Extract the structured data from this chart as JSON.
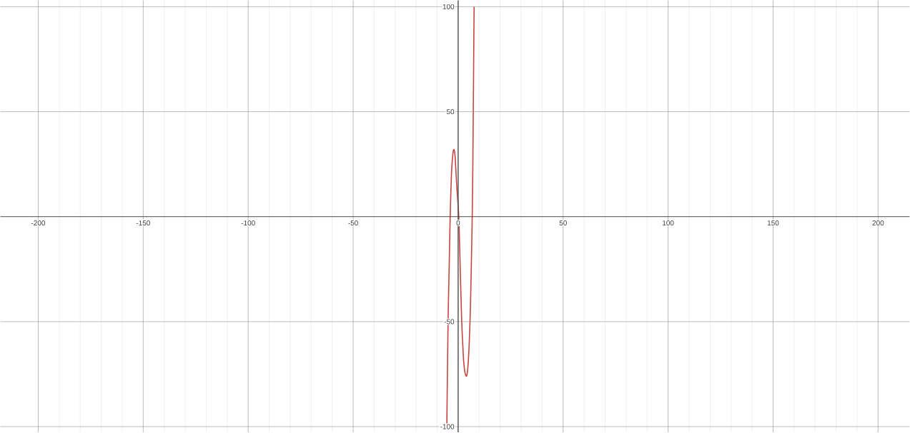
{
  "chart_data": {
    "type": "line",
    "x": [
      -5.4,
      -4.8,
      -4.3,
      -3.8,
      -3.2,
      -2.5,
      -1.95,
      -1.4,
      -0.7,
      0.3,
      1.0,
      1.7,
      2.5,
      3.2,
      4.0,
      4.6,
      5.2,
      5.8,
      6.3,
      6.7,
      7.0,
      7.2,
      7.4,
      7.6
    ],
    "series": [
      {
        "color": "#c74440",
        "values": [
          -100,
          -50,
          -25,
          0,
          20,
          30,
          32,
          28,
          15,
          0,
          -25,
          -50,
          -67,
          -74,
          -76,
          -72,
          -62,
          -45,
          -22,
          0,
          25,
          50,
          75,
          100
        ]
      }
    ],
    "xlim": [
      -218,
      215
    ],
    "ylim": [
      -102.7,
      103
    ],
    "xticks": [
      -200,
      -150,
      -100,
      -50,
      0,
      50,
      100,
      150,
      200
    ],
    "yticks": [
      -100,
      -50,
      50,
      100
    ],
    "grid": true,
    "marker": "none",
    "line_style": "solid"
  }
}
